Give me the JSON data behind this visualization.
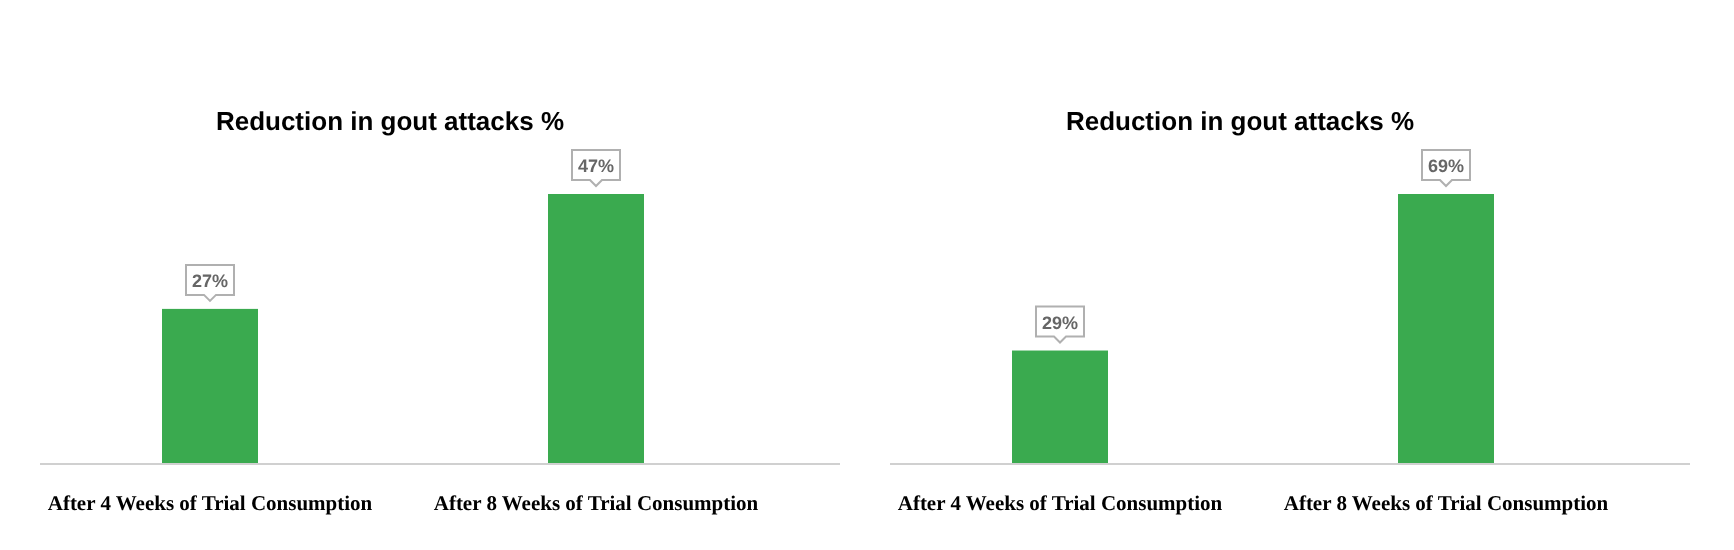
{
  "chart_data": [
    {
      "type": "bar",
      "title": "Reduction in gout attacks %",
      "categories": [
        "After 4 Weeks of Trial Consumption",
        "After 8 Weeks of Trial Consumption"
      ],
      "values": [
        27,
        47
      ],
      "color": "#3aaa4f",
      "value_labels": [
        "27%",
        "47%"
      ],
      "tick_labels": "x"
    },
    {
      "type": "bar",
      "title": "Reduction in gout attacks %",
      "categories": [
        "After 4 Weeks of Trial Consumption",
        "After 8 Weeks of Trial Consumption"
      ],
      "values": [
        29,
        69
      ],
      "color": "#3aaa4f",
      "value_labels": [
        "29%",
        "69%"
      ],
      "tick_labels": "x"
    }
  ]
}
